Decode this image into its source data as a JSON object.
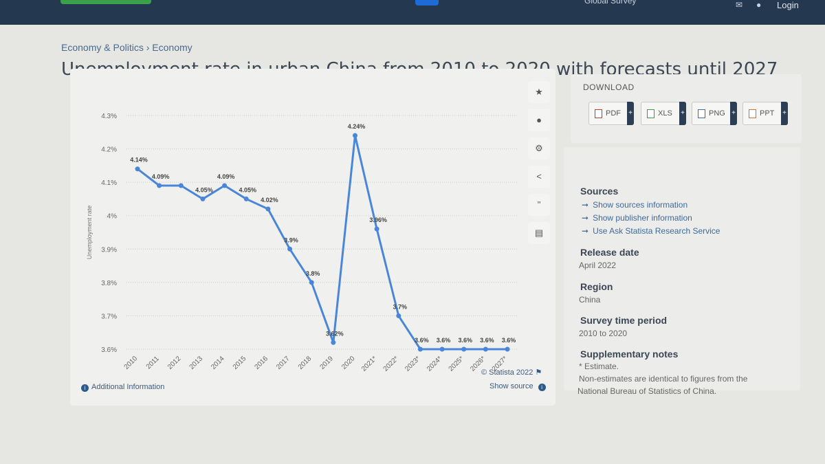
{
  "topbar": {
    "nav_partial": "Global Survey",
    "login": "Login"
  },
  "breadcrumb": {
    "items": [
      "Economy & Politics",
      "Economy"
    ],
    "separator": "›"
  },
  "page_title": "Unemployment rate in urban China from 2010 to 2020 with forecasts until 2027",
  "toolbar": {
    "buttons": [
      "star-icon",
      "bell-icon",
      "gear-icon",
      "share-icon",
      "quote-icon",
      "print-icon"
    ]
  },
  "chart_data": {
    "type": "line",
    "title": "",
    "xlabel": "",
    "ylabel": "Unemployment rate",
    "categories": [
      "2010",
      "2011",
      "2012",
      "2013",
      "2014",
      "2015",
      "2016",
      "2017",
      "2018",
      "2019",
      "2020",
      "2021*",
      "2022*",
      "2023*",
      "2024*",
      "2025*",
      "2026*",
      "2027*"
    ],
    "values": [
      4.14,
      4.09,
      4.09,
      4.05,
      4.09,
      4.05,
      4.02,
      3.9,
      3.8,
      3.62,
      4.24,
      3.96,
      3.7,
      3.6,
      3.6,
      3.6,
      3.6,
      3.6
    ],
    "labels": [
      "4.14%",
      "4.09%",
      "",
      "4.05%",
      "4.09%",
      "4.05%",
      "4.02%",
      "3.9%",
      "3.8%",
      "3.62%",
      "4.24%",
      "3.96%",
      "3.7%",
      "3.6%",
      "3.6%",
      "3.6%",
      "3.6%",
      "3.6%"
    ],
    "yticks": [
      "3.6%",
      "3.7%",
      "3.8%",
      "3.9%",
      "4%",
      "4.1%",
      "4.2%",
      "4.3%"
    ],
    "ylim": [
      3.6,
      4.3
    ],
    "grid": true,
    "series_color": "#4a86d8"
  },
  "chart_footer": {
    "credit": "© Statista 2022",
    "additional_info": "Additional Information",
    "show_source": "Show source"
  },
  "download": {
    "title": "DOWNLOAD",
    "buttons": [
      "PDF",
      "XLS",
      "PNG",
      "PPT"
    ]
  },
  "info": {
    "sources_heading": "Sources",
    "source_links": [
      "Show sources information",
      "Show publisher information",
      "Use Ask Statista Research Service"
    ],
    "release_heading": "Release date",
    "release_value": "April 2022",
    "region_heading": "Region",
    "region_value": "China",
    "period_heading": "Survey time period",
    "period_value": "2010 to 2020",
    "notes_heading": "Supplementary notes",
    "notes_line1": "* Estimate.",
    "notes_line2": "Non-estimates are identical to figures from the",
    "notes_line3": "National Bureau of Statistics of China."
  }
}
